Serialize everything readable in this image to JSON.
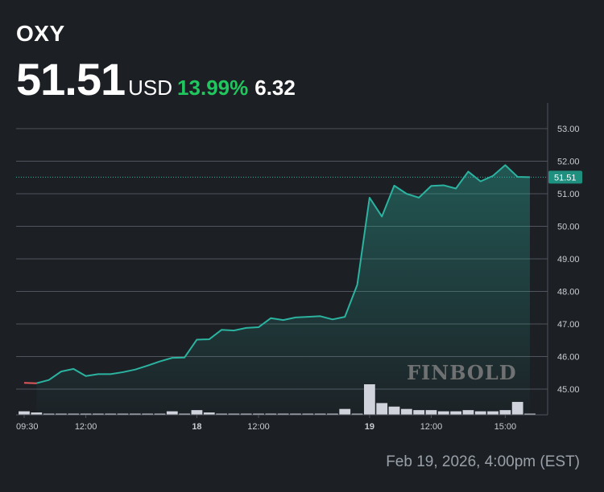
{
  "header": {
    "ticker": "OXY",
    "price": "51.51",
    "currency": "USD",
    "change_pct": "13.99%",
    "change_abs": "6.32"
  },
  "footer": {
    "date": "Feb 19, 2026, 4:00pm (EST)"
  },
  "watermark": {
    "text": "FINBOLD"
  },
  "colors": {
    "background": "#1c1f24",
    "line": "#2bb3a0",
    "gain": "#22c55e",
    "prior_segment": "#e05a5a",
    "volume": "#d0d3db",
    "grid": "#50545c",
    "axis_text": "#c9ccd2"
  },
  "chart_data": {
    "type": "line",
    "title": "",
    "xlabel": "",
    "ylabel": "",
    "ylim": [
      44.6,
      53.5
    ],
    "y_ticks": [
      "45.00",
      "46.00",
      "47.00",
      "48.00",
      "49.00",
      "50.00",
      "51.00",
      "52.00",
      "53.00"
    ],
    "x_ticks": [
      {
        "label": "09:30",
        "index": 0,
        "bold": false
      },
      {
        "label": "12:00",
        "index": 5,
        "bold": false
      },
      {
        "label": "18",
        "index": 14,
        "bold": true
      },
      {
        "label": "12:00",
        "index": 19,
        "bold": false
      },
      {
        "label": "19",
        "index": 28,
        "bold": true
      },
      {
        "label": "12:00",
        "index": 33,
        "bold": false
      },
      {
        "label": "15:00",
        "index": 39,
        "bold": false
      }
    ],
    "last_price_label": "51.51",
    "last_price": 51.51,
    "series": [
      {
        "values": [
          45.19,
          45.18,
          45.28,
          45.54,
          45.62,
          45.4,
          45.46,
          45.46,
          45.52,
          45.6,
          45.72,
          45.85,
          45.96,
          45.97,
          46.52,
          46.53,
          46.82,
          46.8,
          46.88,
          46.9,
          47.18,
          47.12,
          47.2,
          47.22,
          47.24,
          47.14,
          47.22,
          48.2,
          50.88,
          50.3,
          51.25,
          51.0,
          50.88,
          51.24,
          51.26,
          51.16,
          51.68,
          51.38,
          51.55,
          51.88,
          51.52,
          51.51
        ]
      }
    ],
    "prior_segment_end_index": 1,
    "volume": [
      3,
      2,
      1,
      1,
      1,
      1,
      1,
      1,
      1,
      1,
      1,
      1,
      3,
      1,
      4,
      2,
      1,
      1,
      1,
      1,
      1,
      1,
      1,
      1,
      1,
      1,
      5,
      1,
      26,
      10,
      7,
      5,
      4,
      4,
      3,
      3,
      4,
      3,
      3,
      4,
      11,
      1
    ],
    "volume_max": 26
  }
}
